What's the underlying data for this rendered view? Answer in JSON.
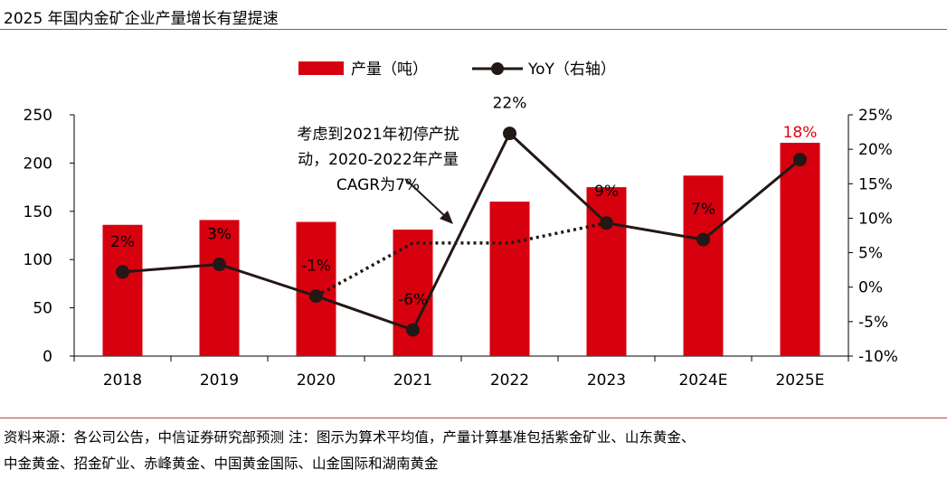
{
  "title": "2025 年国内金矿企业产量增长有望提速",
  "chart_data": {
    "type": "bar+line",
    "categories": [
      "2018",
      "2019",
      "2020",
      "2021",
      "2022",
      "2023",
      "2024E",
      "2025E"
    ],
    "series": [
      {
        "name": "产量（吨）",
        "type": "bar",
        "axis": "left",
        "values": [
          136,
          141,
          139,
          131,
          160,
          175,
          187,
          221
        ]
      },
      {
        "name": "YoY（右轴）",
        "type": "line",
        "axis": "right",
        "values": [
          2.2,
          3.3,
          -1.3,
          -6.2,
          22.3,
          9.3,
          6.9,
          18.5
        ],
        "labels": [
          "2%",
          "3%",
          "-1%",
          "-6%",
          "22%",
          "9%",
          "7%",
          "18%"
        ]
      },
      {
        "name": "CAGR",
        "type": "dotted-line",
        "axis": "right",
        "x": [
          "2020",
          "2021",
          "2022",
          "2023"
        ],
        "values": [
          -1.3,
          6.4,
          6.4,
          9.3
        ]
      }
    ],
    "left_axis": {
      "ylim": [
        0,
        250
      ],
      "ticks": [
        "0",
        "50",
        "100",
        "150",
        "200",
        "250"
      ]
    },
    "right_axis": {
      "ylim": [
        -10,
        25
      ],
      "ticks": [
        "-10%",
        "-5%",
        "0%",
        "5%",
        "10%",
        "15%",
        "20%",
        "25%"
      ]
    },
    "legend": {
      "placement": "top",
      "items": [
        "产量（吨）",
        "YoY（右轴）"
      ]
    },
    "annotation": [
      "考虑到2021年初停产扰",
      "动，2020-2022年产量",
      "CAGR为7%"
    ],
    "colors": {
      "bar": "#d7000f",
      "line": "#231815",
      "highlight": "#e3000b"
    }
  },
  "source": {
    "line1": "资料来源：各公司公告，中信证券研究部预测    注：图示为算术平均值，产量计算基准包括紫金矿业、山东黄金、",
    "line2": "中金黄金、招金矿业、赤峰黄金、中国黄金国际、山金国际和湖南黄金"
  }
}
